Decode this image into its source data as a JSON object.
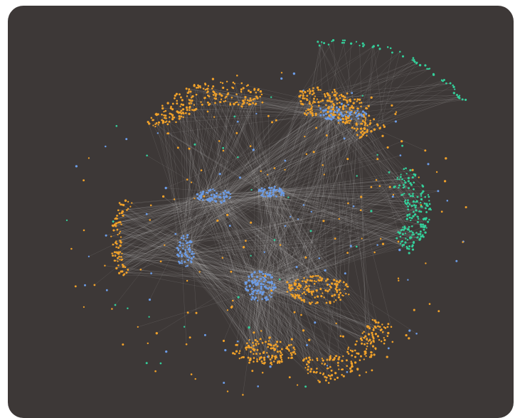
{
  "graph": {
    "background": "#3d3837",
    "edge_color": "#e6e6e6",
    "node_colors": {
      "orange": "#f0a12a",
      "blue": "#6c9ce6",
      "green": "#34cf9a"
    },
    "clusters": [
      {
        "id": "top-left-arc",
        "color": "orange",
        "count": 210
      },
      {
        "id": "top-right-arc",
        "color": "orange",
        "count": 230
      },
      {
        "id": "right-arc",
        "color": "green",
        "count": 170
      },
      {
        "id": "left-arc",
        "color": "orange",
        "count": 80
      },
      {
        "id": "bottom-arc",
        "color": "orange",
        "count": 170
      },
      {
        "id": "bottom-left-blob",
        "color": "orange",
        "count": 120
      },
      {
        "id": "center-low-blob",
        "color": "orange",
        "count": 140
      },
      {
        "id": "upper-right-arc",
        "color": "green",
        "count": 55
      },
      {
        "id": "hub-center-left",
        "color": "blue",
        "count": 70
      },
      {
        "id": "hub-center",
        "color": "blue",
        "count": 50
      },
      {
        "id": "hub-left",
        "color": "blue",
        "count": 60
      },
      {
        "id": "hub-lower-center",
        "color": "blue",
        "count": 110
      },
      {
        "id": "hub-top-right",
        "color": "blue",
        "count": 60
      },
      {
        "id": "scattered",
        "color": "mixed",
        "count": 260
      }
    ]
  }
}
